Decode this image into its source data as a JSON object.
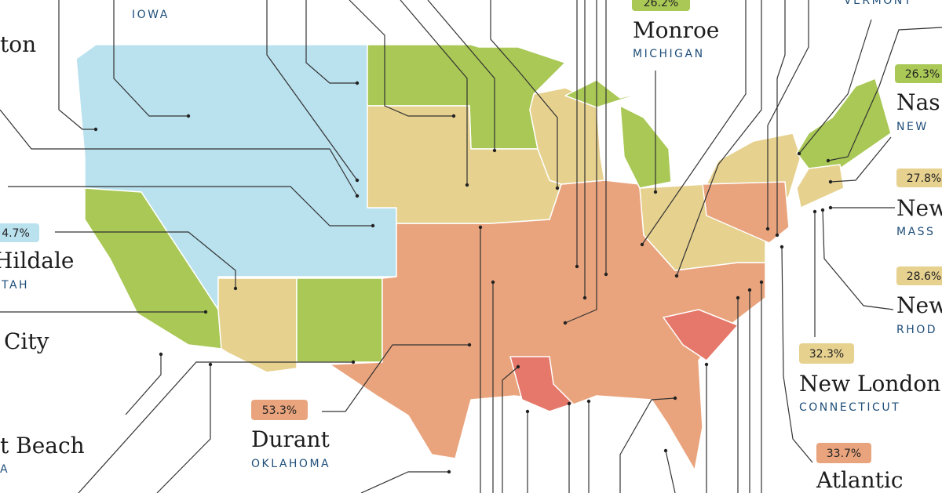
{
  "labels": [
    {
      "pct": "26.2%",
      "city": "Monroe",
      "state": "MICHIGAN"
    },
    {
      "pct": "26.3%",
      "city": "Nas",
      "state": "NEW"
    },
    {
      "pct": "27.8%",
      "city": "New",
      "state": "MASS"
    },
    {
      "pct": "28.6%",
      "city": "New",
      "state": "RHOD"
    },
    {
      "pct": "32.3%",
      "city": "New London",
      "state": "CONNECTICUT"
    },
    {
      "pct": "33.7%",
      "city": "Atlantic"
    },
    {
      "pct": "53.3%",
      "city": "Durant",
      "state": "OKLAHOMA"
    },
    {
      "pct": "4.7%",
      "city": "Hildale",
      "state": "TAH"
    },
    {
      "city": "ton"
    },
    {
      "city": "City"
    },
    {
      "city": "t Beach",
      "state": "A"
    }
  ],
  "states_only": [
    "IOWA",
    "VERMONT"
  ]
}
